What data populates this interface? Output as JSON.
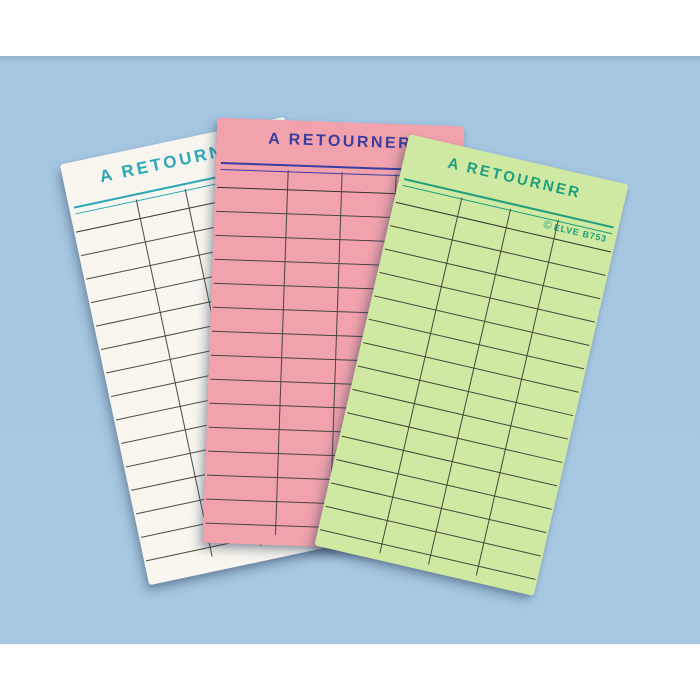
{
  "scene": {
    "background_blue": "#a7c8e2",
    "letterbox_color": "#ffffff",
    "description": "three A RETOURNER return-slip cards fanned out"
  },
  "cards": [
    {
      "id": "white-card",
      "title": "A RETOURNER",
      "paper_color": "#f8f6ee",
      "ink_color": "#2ba7b8",
      "grid_line_color": "#4b4b41",
      "grid": {
        "columns": 4,
        "rows": 14,
        "horizontal_lines": 15,
        "column_separator_positions_pct": [
          29,
          51,
          73
        ]
      }
    },
    {
      "id": "pink-card",
      "title": "A RETOURNER",
      "paper_color": "#f2a2ad",
      "ink_color": "#3a3e9f",
      "grid_line_color": "#4b4342",
      "grid": {
        "columns": 4,
        "rows": 14,
        "horizontal_lines": 15,
        "column_separator_positions_pct": [
          29,
          51,
          73
        ]
      }
    },
    {
      "id": "green-card",
      "title": "A RETOURNER",
      "paper_color": "#cfe9a2",
      "ink_color": "#1d9e7c",
      "grid_line_color": "#45473a",
      "brand": {
        "symbol": "©",
        "text": "ELVE B753"
      },
      "grid": {
        "columns": 4,
        "rows": 14,
        "horizontal_lines": 15,
        "column_separator_positions_pct": [
          29,
          51,
          73
        ]
      }
    }
  ]
}
